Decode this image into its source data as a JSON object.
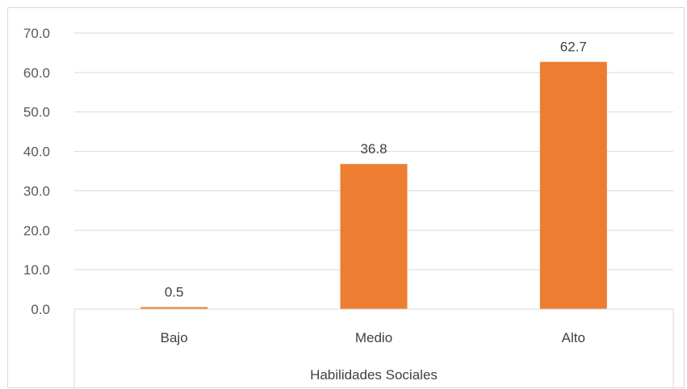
{
  "chart_data": {
    "type": "bar",
    "categories": [
      "Bajo",
      "Medio",
      "Alto"
    ],
    "values": [
      0.5,
      36.8,
      62.7
    ],
    "data_labels": [
      "0.5",
      "36.8",
      "62.7"
    ],
    "title": "",
    "xlabel": "Habilidades Sociales",
    "ylabel": "",
    "ylim": [
      0,
      70
    ],
    "yticks": [
      0,
      10,
      20,
      30,
      40,
      50,
      60,
      70
    ],
    "ytick_labels": [
      "0.0",
      "10.0",
      "20.0",
      "30.0",
      "40.0",
      "50.0",
      "60.0",
      "70.0"
    ],
    "grid": true,
    "legend": "none",
    "bar_color": "#ED7D31"
  }
}
